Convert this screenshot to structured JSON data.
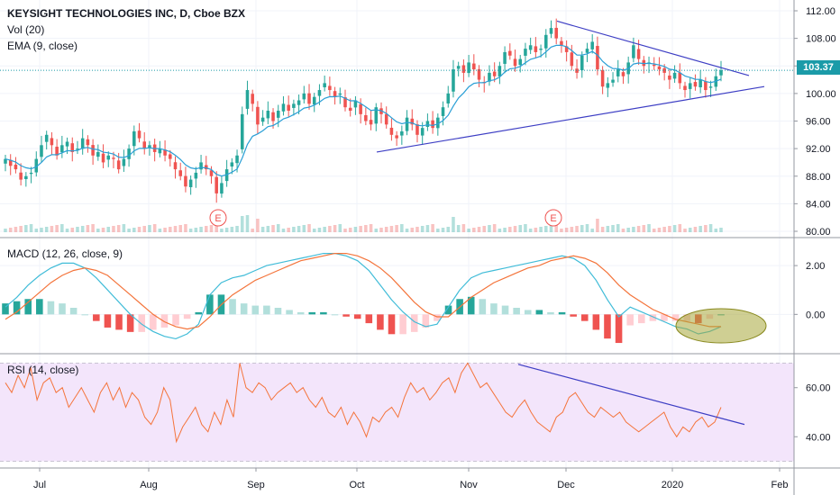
{
  "header": {
    "title": "KEYSIGHT TECHNOLOGIES INC, D, Cboe BZX",
    "vol_label": "Vol (20)",
    "ema_label": "EMA (9, close)",
    "macd_label": "MACD (12, 26, close, 9)",
    "rsi_label": "RSI (14, close)"
  },
  "last_price": "103.37",
  "earnings_marker": "E",
  "colors": {
    "up": "#26a69a",
    "down": "#ef5350",
    "ema": "#2a9fd6",
    "macd_line": "#40bcd8",
    "signal_line": "#f4743b",
    "rsi_line": "#f4743b",
    "rsi_band": "#f3e5fb",
    "trendline": "#3d3ec4",
    "highlight": "#a8a83a"
  },
  "chart_data": [
    {
      "type": "candlestick",
      "title": "KEYSIGHT TECHNOLOGIES INC, D, Cboe BZX",
      "y_ticks": [
        "80.00",
        "84.00",
        "88.00",
        "92.00",
        "96.00",
        "100.00",
        "104.00",
        "108.00",
        "112.00"
      ],
      "ylim": [
        80,
        112
      ],
      "x_ticks": [
        "Jul",
        "Aug",
        "Sep",
        "Oct",
        "Nov",
        "Dec",
        "2020",
        "Feb"
      ],
      "last_close": 103.37,
      "earnings_events": [
        "2019-08-21",
        "2019-11-20"
      ],
      "closes_approx": [
        90.5,
        89.5,
        89.0,
        87.5,
        88.0,
        88.5,
        90.5,
        92.5,
        94.0,
        92.5,
        91.0,
        92.5,
        93.0,
        91.5,
        92.0,
        93.5,
        92.5,
        91.0,
        91.5,
        90.0,
        91.0,
        90.5,
        89.0,
        90.5,
        92.0,
        94.5,
        93.5,
        92.0,
        92.5,
        91.5,
        92.0,
        91.0,
        90.5,
        89.0,
        88.0,
        86.5,
        87.5,
        88.5,
        90.0,
        89.0,
        88.0,
        85.5,
        87.0,
        89.0,
        90.0,
        91.0,
        97.0,
        100.5,
        98.5,
        95.5,
        96.5,
        97.5,
        96.0,
        97.5,
        98.5,
        97.5,
        98.5,
        99.0,
        100.0,
        98.5,
        99.5,
        100.5,
        101.5,
        100.5,
        99.5,
        100.0,
        98.0,
        97.5,
        99.0,
        97.0,
        96.0,
        95.5,
        98.0,
        97.0,
        95.5,
        94.0,
        93.5,
        94.5,
        96.5,
        95.5,
        94.0,
        95.0,
        96.0,
        95.0,
        96.5,
        98.0,
        100.0,
        103.5,
        104.0,
        103.0,
        104.5,
        103.5,
        102.0,
        101.5,
        103.0,
        102.5,
        104.0,
        106.0,
        105.5,
        104.0,
        105.0,
        106.5,
        107.0,
        106.0,
        106.5,
        108.5,
        109.5,
        108.0,
        107.0,
        106.0,
        104.0,
        103.0,
        105.5,
        106.5,
        107.5,
        103.5,
        101.0,
        101.5,
        102.0,
        103.5,
        102.5,
        104.5,
        107.0,
        105.0,
        104.0,
        104.5,
        104.0,
        103.5,
        103.0,
        102.0,
        103.0,
        101.5,
        100.5,
        101.5,
        101.0,
        102.0,
        100.5,
        101.0,
        102.5,
        103.37
      ]
    },
    {
      "type": "macd",
      "title": "MACD (12, 26, close, 9)",
      "y_ticks": [
        "2.00",
        "0.00"
      ],
      "ylim": [
        -1.5,
        3.0
      ],
      "macd_approx": [
        0.3,
        0.7,
        1.2,
        1.6,
        1.9,
        2.1,
        2.1,
        1.9,
        1.5,
        1.0,
        0.5,
        0.0,
        -0.4,
        -0.7,
        -0.9,
        -1.0,
        -0.8,
        -0.4,
        0.8,
        1.3,
        1.5,
        1.6,
        1.8,
        2.0,
        2.1,
        2.2,
        2.3,
        2.4,
        2.5,
        2.5,
        2.4,
        2.2,
        1.8,
        1.2,
        0.6,
        0.1,
        -0.3,
        -0.5,
        -0.4,
        0.3,
        1.0,
        1.5,
        1.7,
        1.8,
        1.9,
        2.0,
        2.1,
        2.2,
        2.3,
        2.4,
        2.3,
        2.0,
        1.4,
        0.6,
        -0.1,
        0.3,
        0.1,
        -0.1,
        -0.3,
        -0.5,
        -0.6,
        -0.8,
        -0.7,
        -0.5
      ],
      "signal_approx": [
        -0.2,
        0.1,
        0.5,
        0.9,
        1.3,
        1.6,
        1.8,
        1.9,
        1.8,
        1.6,
        1.2,
        0.8,
        0.4,
        0.0,
        -0.3,
        -0.5,
        -0.6,
        -0.5,
        -0.1,
        0.4,
        0.8,
        1.1,
        1.4,
        1.6,
        1.8,
        2.0,
        2.2,
        2.3,
        2.4,
        2.5,
        2.5,
        2.4,
        2.2,
        1.9,
        1.5,
        1.0,
        0.5,
        0.1,
        -0.1,
        -0.1,
        0.3,
        0.7,
        1.0,
        1.3,
        1.5,
        1.7,
        1.9,
        2.0,
        2.2,
        2.3,
        2.4,
        2.3,
        2.1,
        1.7,
        1.2,
        0.8,
        0.5,
        0.2,
        0.0,
        -0.2,
        -0.3,
        -0.4,
        -0.5,
        -0.5
      ]
    },
    {
      "type": "line",
      "title": "RSI (14, close)",
      "y_ticks": [
        "60.00",
        "40.00"
      ],
      "band": [
        30,
        70
      ],
      "ylim": [
        28,
        72
      ],
      "values_approx": [
        62,
        58,
        65,
        60,
        68,
        55,
        62,
        64,
        58,
        60,
        52,
        56,
        60,
        55,
        50,
        58,
        62,
        55,
        60,
        52,
        58,
        55,
        48,
        45,
        50,
        60,
        55,
        38,
        44,
        48,
        52,
        45,
        42,
        50,
        45,
        55,
        48,
        70,
        60,
        58,
        62,
        60,
        55,
        58,
        60,
        62,
        58,
        60,
        55,
        52,
        56,
        50,
        48,
        52,
        45,
        50,
        46,
        40,
        48,
        46,
        50,
        52,
        48,
        56,
        62,
        58,
        60,
        55,
        58,
        62,
        64,
        58,
        66,
        70,
        65,
        60,
        62,
        58,
        54,
        50,
        48,
        52,
        55,
        50,
        46,
        44,
        42,
        48,
        50,
        56,
        58,
        54,
        50,
        48,
        52,
        50,
        48,
        50,
        46,
        44,
        42,
        44,
        46,
        48,
        50,
        44,
        40,
        44,
        42,
        46,
        48,
        44,
        46,
        52
      ]
    }
  ]
}
